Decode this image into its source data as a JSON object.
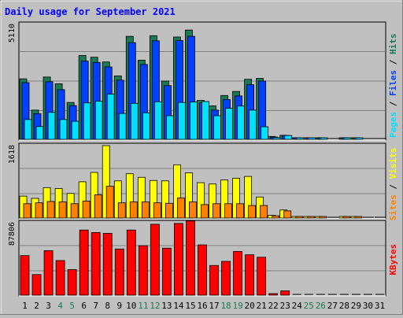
{
  "title": "Daily usage for September 2021",
  "colors": {
    "background": "#c0c0c0",
    "plot": "#c0c0c0",
    "title": "#0000ff",
    "hits": "#1a7a55",
    "files": "#0040ff",
    "pages": "#00e0ff",
    "visits": "#ffff00",
    "sites": "#ff8000",
    "kbytes": "#ff0000",
    "weekend_label": "#1a7a55",
    "weekday_label": "#000000"
  },
  "legends": {
    "top": [
      {
        "text": "Hits",
        "color": "#1a7a55"
      },
      {
        "text": "Files",
        "color": "#0040ff"
      },
      {
        "text": "Pages",
        "color": "#00e0ff"
      }
    ],
    "middle": [
      {
        "text": "Visits",
        "color": "#ffff00"
      },
      {
        "text": "Sites",
        "color": "#ff8000"
      }
    ],
    "bottom": [
      {
        "text": "KBytes",
        "color": "#ff0000"
      }
    ]
  },
  "chart_data": [
    {
      "type": "bar",
      "title": "Daily usage for September 2021",
      "categories": [
        "1",
        "2",
        "3",
        "4",
        "5",
        "6",
        "7",
        "8",
        "9",
        "10",
        "11",
        "12",
        "13",
        "14",
        "15",
        "16",
        "17",
        "18",
        "19",
        "20",
        "21",
        "22",
        "23",
        "24",
        "25",
        "26",
        "27",
        "28",
        "29",
        "30",
        "31"
      ],
      "weekend_days": [
        "4",
        "5",
        "11",
        "12",
        "18",
        "19",
        "25",
        "26"
      ],
      "y_max_label": "5110",
      "ylim": [
        0,
        5110
      ],
      "series": [
        {
          "name": "Hits",
          "values": [
            2690,
            1300,
            2770,
            2470,
            1640,
            3730,
            3650,
            3440,
            2820,
            4580,
            3520,
            4610,
            2590,
            4550,
            4860,
            1730,
            1490,
            1950,
            2130,
            2670,
            2710,
            130,
            180,
            50,
            50,
            50,
            0,
            40,
            40,
            0,
            0
          ]
        },
        {
          "name": "Files",
          "values": [
            2520,
            1140,
            2560,
            2210,
            1500,
            3480,
            3420,
            3220,
            2630,
            4300,
            3330,
            4380,
            2390,
            4390,
            4580,
            1620,
            1300,
            1770,
            1930,
            2430,
            2590,
            100,
            170,
            40,
            40,
            40,
            0,
            30,
            30,
            0,
            0
          ]
        },
        {
          "name": "Pages",
          "values": [
            880,
            570,
            1200,
            880,
            800,
            1620,
            1700,
            2010,
            1150,
            1600,
            1180,
            1670,
            1050,
            1640,
            1660,
            1680,
            1050,
            1380,
            1480,
            1300,
            560,
            50,
            170,
            10,
            10,
            10,
            0,
            10,
            10,
            0,
            0
          ]
        }
      ]
    },
    {
      "type": "bar",
      "categories": [
        "1",
        "2",
        "3",
        "4",
        "5",
        "6",
        "7",
        "8",
        "9",
        "10",
        "11",
        "12",
        "13",
        "14",
        "15",
        "16",
        "17",
        "18",
        "19",
        "20",
        "21",
        "22",
        "23",
        "24",
        "25",
        "26",
        "27",
        "28",
        "29",
        "30",
        "31"
      ],
      "y_max_label": "1618",
      "ylim": [
        0,
        1618
      ],
      "series": [
        {
          "name": "Visits",
          "values": [
            490,
            440,
            680,
            660,
            550,
            810,
            1020,
            1618,
            830,
            990,
            910,
            840,
            830,
            1190,
            1010,
            790,
            760,
            850,
            890,
            930,
            470,
            60,
            180,
            10,
            10,
            10,
            0,
            10,
            10,
            0,
            0
          ]
        },
        {
          "name": "Sites",
          "values": [
            320,
            340,
            370,
            360,
            320,
            380,
            520,
            710,
            340,
            360,
            360,
            340,
            330,
            450,
            360,
            300,
            320,
            320,
            320,
            280,
            280,
            50,
            160,
            10,
            10,
            10,
            0,
            10,
            10,
            0,
            0
          ]
        }
      ]
    },
    {
      "type": "bar",
      "categories": [
        "1",
        "2",
        "3",
        "4",
        "5",
        "6",
        "7",
        "8",
        "9",
        "10",
        "11",
        "12",
        "13",
        "14",
        "15",
        "16",
        "17",
        "18",
        "19",
        "20",
        "21",
        "22",
        "23",
        "24",
        "25",
        "26",
        "27",
        "28",
        "29",
        "30",
        "31"
      ],
      "y_max_label": "87806",
      "ylim": [
        0,
        87806
      ],
      "series": [
        {
          "name": "KBytes",
          "values": [
            48000,
            25000,
            54000,
            42000,
            31000,
            79000,
            76000,
            75000,
            56000,
            79000,
            60000,
            86000,
            57000,
            87000,
            90000,
            61000,
            36000,
            41000,
            53000,
            49000,
            46000,
            1500,
            5200,
            0,
            0,
            0,
            0,
            0,
            0,
            0,
            0
          ]
        }
      ]
    }
  ]
}
